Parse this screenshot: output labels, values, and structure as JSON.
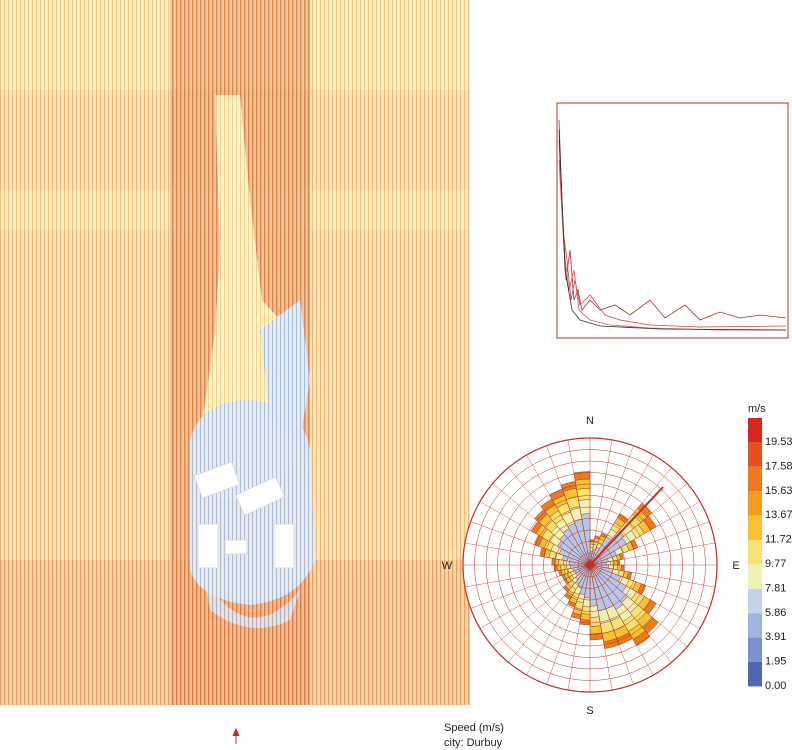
{
  "legend": {
    "unit": "m/s",
    "labels": [
      "19.53",
      "17.58",
      "15.63",
      "13.67",
      "11.72",
      "9.77",
      "7.81",
      "5.86",
      "3.91",
      "1.95",
      "0.00"
    ]
  },
  "wind_rose": {
    "compass": [
      "N",
      "E",
      "S",
      "W"
    ]
  },
  "caption": [
    "Speed (m/s)",
    "city: Durbuy"
  ]
}
